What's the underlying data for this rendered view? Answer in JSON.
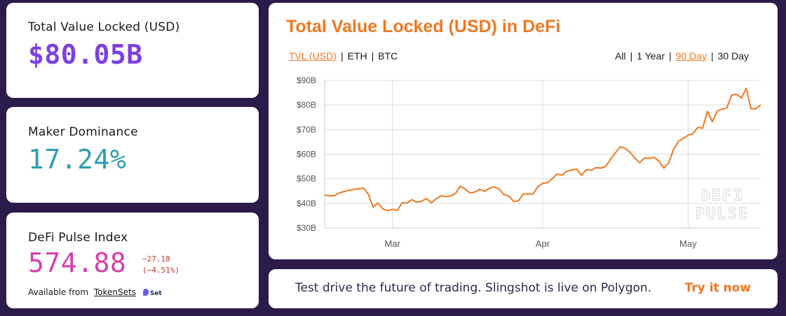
{
  "stats": {
    "tvl": {
      "label": "Total Value Locked (USD)",
      "value": "$80.05B"
    },
    "maker": {
      "label": "Maker Dominance",
      "value": "17.24%"
    },
    "dpi": {
      "label": "DeFi Pulse Index",
      "value": "574.88",
      "change_abs": "−27.18",
      "change_pct": "(−4.51%)",
      "available_prefix": "Available from",
      "available_link": "TokenSets",
      "badge": "Set"
    }
  },
  "chart_header": {
    "title": "Total Value Locked (USD) in DeFi",
    "units": [
      "TVL (USD)",
      "ETH",
      "BTC"
    ],
    "active_unit": "TVL (USD)",
    "ranges": [
      "All",
      "1 Year",
      "90 Day",
      "30 Day"
    ],
    "active_range": "90 Day"
  },
  "watermark": [
    "DEFI",
    "PULSE"
  ],
  "banner": {
    "text": "Test drive the future of trading. Slingshot is live on Polygon.",
    "cta": "Try it now"
  },
  "colors": {
    "line": "#f07820",
    "accent": "#f07820",
    "tvl": "#7b40e6",
    "maker": "#2e9eb0",
    "dpi": "#d63fae"
  },
  "chart_data": {
    "type": "line",
    "title": "Total Value Locked (USD) in DeFi",
    "xlabel": "",
    "ylabel": "",
    "ylim": [
      30,
      90
    ],
    "yticks": [
      30,
      40,
      50,
      60,
      70,
      80,
      90
    ],
    "ytick_labels": [
      "$30B",
      "$40B",
      "$50B",
      "$60B",
      "$70B",
      "$80B",
      "$90B"
    ],
    "xticks": [
      {
        "label": "Mar",
        "day": 14
      },
      {
        "label": "Apr",
        "day": 45
      },
      {
        "label": "May",
        "day": 75
      }
    ],
    "grid": true,
    "legend": "none",
    "series": [
      {
        "values": [
          43.4,
          43.0,
          43.1,
          44.2,
          44.8,
          45.3,
          45.7,
          45.9,
          46.2,
          43.8,
          38.5,
          40.1,
          37.8,
          37.0,
          37.6,
          37.1,
          40.3,
          40.1,
          41.5,
          40.5,
          40.8,
          42.0,
          40.2,
          41.8,
          43.1,
          42.7,
          43.0,
          44.0,
          47.0,
          45.8,
          44.2,
          44.6,
          45.7,
          44.9,
          46.1,
          46.7,
          45.8,
          43.6,
          42.9,
          40.8,
          41.0,
          43.9,
          43.7,
          43.8,
          46.8,
          48.1,
          48.4,
          50.1,
          51.9,
          51.5,
          53.1,
          53.6,
          53.9,
          51.4,
          53.7,
          53.5,
          54.5,
          54.3,
          55.0,
          57.9,
          60.5,
          63.0,
          62.4,
          60.8,
          58.4,
          56.5,
          58.4,
          58.3,
          58.7,
          57.1,
          54.3,
          56.5,
          61.9,
          65.2,
          66.4,
          67.7,
          68.3,
          70.9,
          70.6,
          77.4,
          73.2,
          77.5,
          78.3,
          78.8,
          84.0,
          84.4,
          82.8,
          86.8,
          78.4,
          78.5,
          80.05
        ]
      }
    ]
  }
}
